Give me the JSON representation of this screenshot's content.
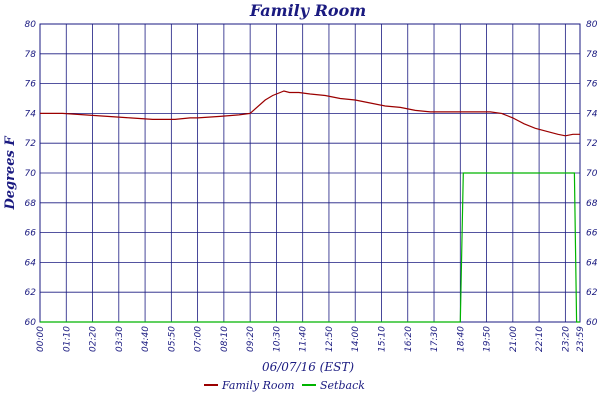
{
  "chart_data": {
    "type": "line",
    "title": "Family Room",
    "xlabel": "06/07/16 (EST)",
    "ylabel": "Degrees F",
    "x_ticks": [
      "00:00",
      "01:10",
      "02:20",
      "03:30",
      "04:40",
      "05:50",
      "07:00",
      "08:10",
      "09:20",
      "10:30",
      "11:40",
      "12:50",
      "14:00",
      "15:10",
      "16:20",
      "17:30",
      "18:40",
      "19:50",
      "21:00",
      "22:10",
      "23:20",
      "23:59"
    ],
    "x_range_minutes": [
      0,
      1439
    ],
    "ylim": [
      60,
      80
    ],
    "y_ticks": [
      60,
      62,
      64,
      66,
      68,
      70,
      72,
      74,
      76,
      78,
      80
    ],
    "grid": true,
    "legend_position": "bottom",
    "colors": {
      "family_room": "#9b0000",
      "setback": "#00b400",
      "grid": "#1a1a80",
      "text": "#1a1a80"
    },
    "series": [
      {
        "name": "Family Room",
        "x_minutes": [
          0,
          60,
          120,
          180,
          240,
          300,
          360,
          400,
          420,
          480,
          530,
          560,
          600,
          620,
          640,
          650,
          665,
          690,
          720,
          760,
          800,
          840,
          880,
          920,
          960,
          1000,
          1040,
          1080,
          1120,
          1160,
          1200,
          1230,
          1260,
          1290,
          1320,
          1350,
          1380,
          1400,
          1420,
          1439
        ],
        "values": [
          74.0,
          74.0,
          73.9,
          73.8,
          73.7,
          73.6,
          73.6,
          73.7,
          73.7,
          73.8,
          73.9,
          74.0,
          74.9,
          75.2,
          75.4,
          75.5,
          75.4,
          75.4,
          75.3,
          75.2,
          75.0,
          74.9,
          74.7,
          74.5,
          74.4,
          74.2,
          74.1,
          74.1,
          74.1,
          74.1,
          74.1,
          74.0,
          73.7,
          73.3,
          73.0,
          72.8,
          72.6,
          72.5,
          72.6,
          72.6
        ]
      },
      {
        "name": "Setback",
        "x_minutes": [
          0,
          1120,
          1128,
          1424,
          1430,
          1439
        ],
        "values": [
          60,
          60,
          70,
          70,
          60,
          60
        ]
      }
    ]
  },
  "legend": [
    {
      "label": "Family Room",
      "color": "#9b0000"
    },
    {
      "label": "Setback",
      "color": "#00b400"
    }
  ]
}
